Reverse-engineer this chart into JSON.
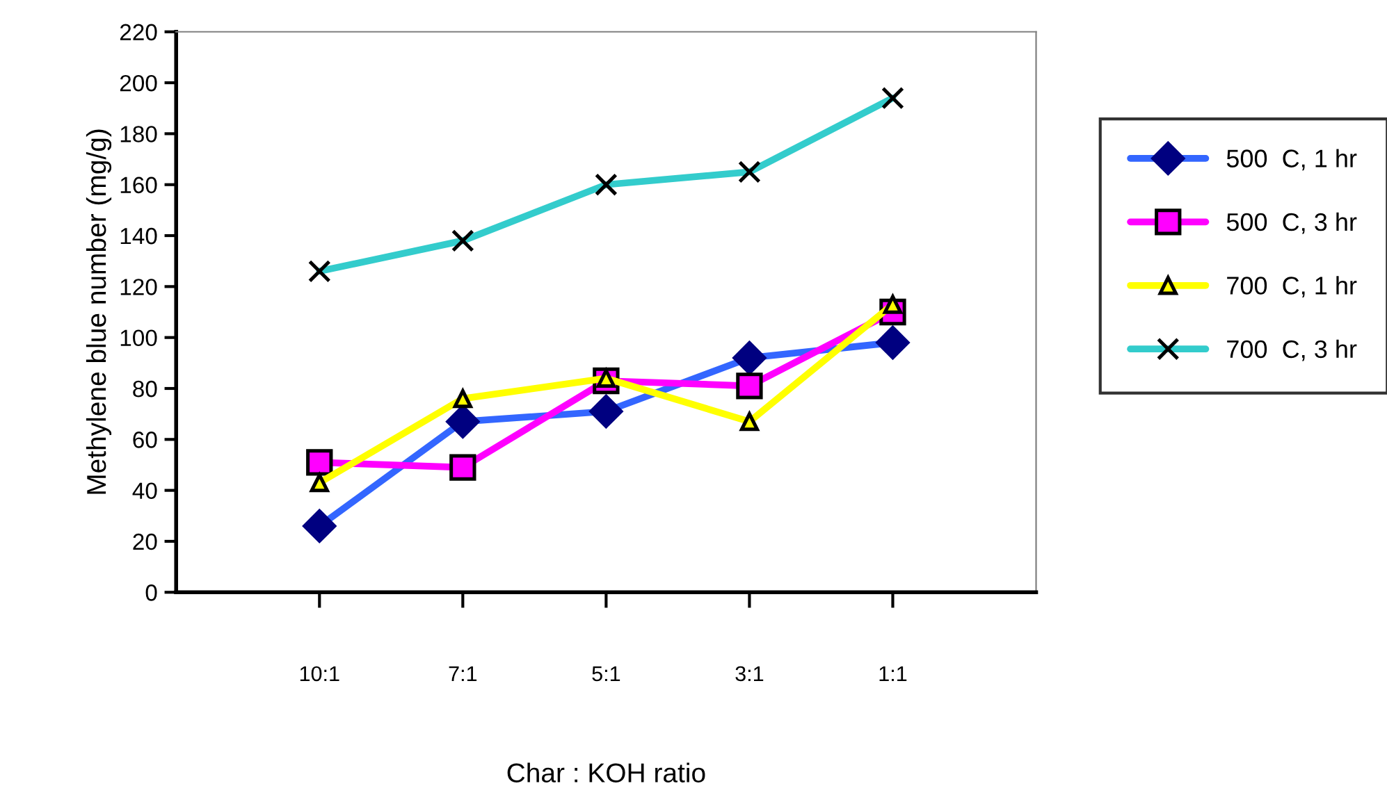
{
  "chart_data": {
    "type": "line",
    "xlabel": "Char : KOH ratio",
    "ylabel": "Methylene blue number (mg/g)",
    "categories": [
      "10:1",
      "7:1",
      "5:1",
      "3:1",
      "1:1"
    ],
    "ylim": [
      0,
      220
    ],
    "yticks": [
      0,
      20,
      40,
      60,
      80,
      100,
      120,
      140,
      160,
      180,
      200,
      220
    ],
    "grid": false,
    "legend": "right",
    "series": [
      {
        "name": "500  C, 1 hr",
        "color": "#3366ff",
        "marker": "diamond",
        "values": [
          26,
          67,
          71,
          92,
          98
        ]
      },
      {
        "name": "500  C, 3 hr",
        "color": "#ff00ff",
        "marker": "square",
        "values": [
          51,
          49,
          83,
          81,
          110
        ]
      },
      {
        "name": "700  C, 1 hr",
        "color": "#ffff00",
        "marker": "triangle",
        "values": [
          43,
          76,
          84,
          67,
          113
        ]
      },
      {
        "name": "700  C, 3 hr",
        "color": "#33cccc",
        "marker": "cross",
        "values": [
          126,
          138,
          160,
          165,
          194
        ]
      }
    ]
  }
}
